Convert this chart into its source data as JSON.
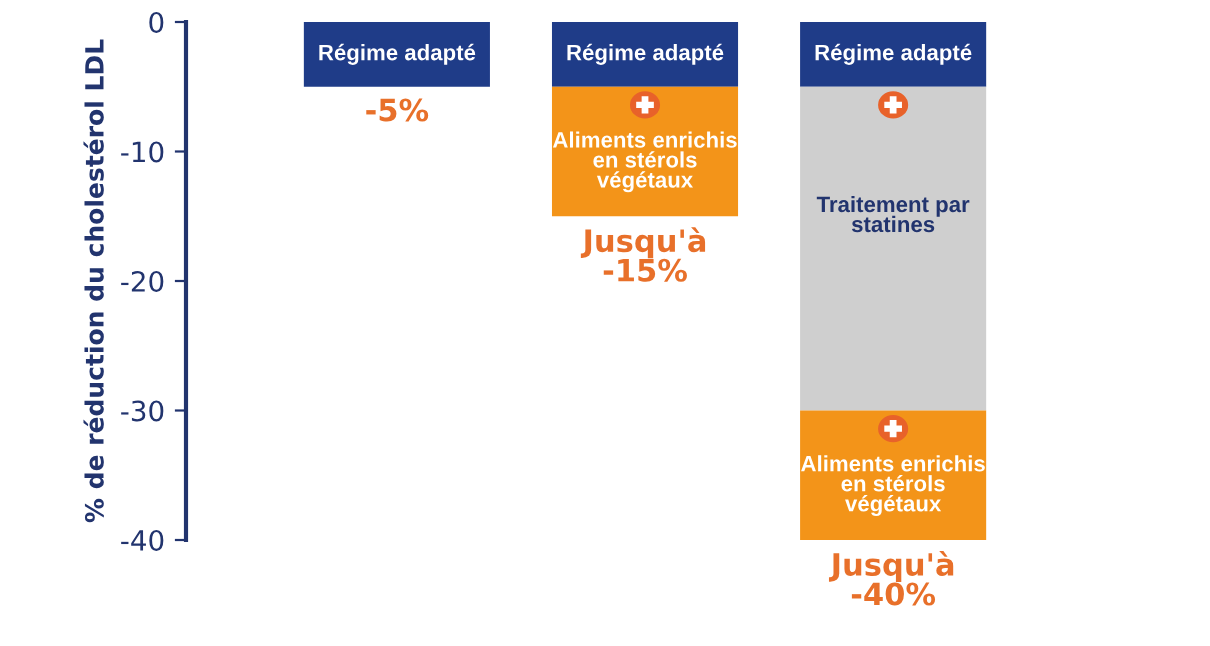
{
  "chart_data": {
    "type": "bar",
    "stacked": true,
    "ylabel": "% de réduction du cholestérol LDL",
    "categories": [
      null,
      null,
      null
    ],
    "series": [
      {
        "name": "Régime adapté",
        "color": "#1f3c88",
        "values": [
          -5,
          -5,
          -5
        ]
      },
      {
        "name": "Traitement par\nstatines",
        "color": "#cfcfcf",
        "values": [
          null,
          null,
          -25
        ]
      },
      {
        "name": "Aliments enrichis\nen stérols\nvégétaux",
        "color": "#f39419",
        "values": [
          null,
          -10,
          -10
        ]
      }
    ],
    "totals": [
      "-5%",
      "Jusqu'à\n-15%",
      "Jusqu'à\n-40%"
    ],
    "ylim": [
      -40,
      0
    ],
    "yticks": [
      -40,
      -30,
      -20,
      -10,
      0
    ],
    "grid": false,
    "legend": false
  }
}
